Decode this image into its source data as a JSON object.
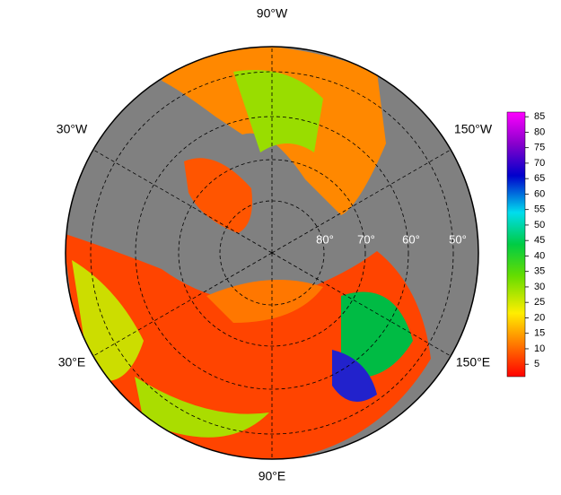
{
  "map": {
    "longitude_labels": [
      "90°W",
      "30°W",
      "150°W",
      "30°E",
      "90°E",
      "150°E"
    ],
    "latitude_labels": [
      "80°",
      "70°",
      "60°",
      "50°"
    ],
    "colorbar": {
      "clim": [
        1,
        86.5
      ],
      "ticks": [
        5,
        10,
        15,
        20,
        25,
        30,
        35,
        40,
        45,
        50,
        55,
        60,
        65,
        70,
        75,
        80,
        85
      ]
    }
  }
}
